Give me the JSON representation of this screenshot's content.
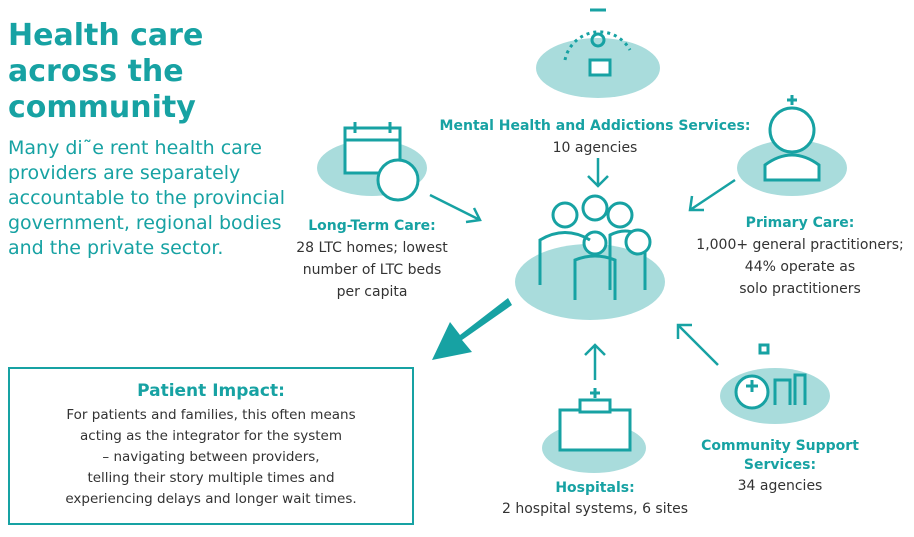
{
  "title": "Health care across the community",
  "intro": "Many di˜e rent health care providers are separately accountable to the provincial government, regional bodies and the private sector.",
  "nodes": [
    {
      "label": "Mental Health and Addictions Services:",
      "lines": [
        "10 agencies"
      ]
    },
    {
      "label": "Long-Term Care:",
      "lines": [
        "28 LTC homes; lowest",
        "number of LTC beds",
        "per capita"
      ]
    },
    {
      "label": "Primary Care:",
      "lines": [
        "1,000+ general practitioners;",
        "44% operate as",
        "solo practitioners"
      ]
    },
    {
      "label": "Community Support Services:",
      "lines": [
        "34 agencies"
      ]
    },
    {
      "label": "Hospitals:",
      "lines": [
        "2 hospital systems, 6 sites"
      ]
    }
  ],
  "impact": {
    "title": "Patient Impact:",
    "lines": [
      "For patients and families, this often means",
      "acting as the integrator for the system",
      "– navigating between providers,",
      "telling their story multiple times and",
      "experiencing delays and longer wait times."
    ]
  }
}
